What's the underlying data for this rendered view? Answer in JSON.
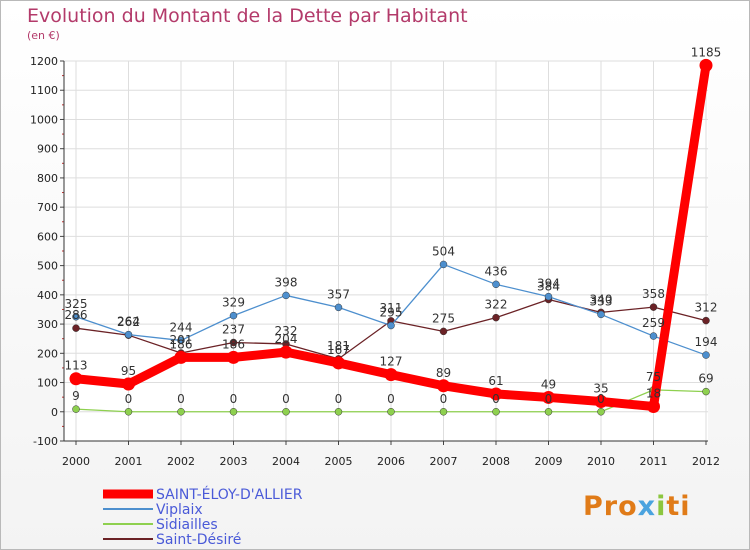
{
  "title": "Evolution du Montant de la Dette par Habitant",
  "subtitle": "(en €)",
  "logo_text": "Proxiti",
  "chart_data": {
    "type": "line",
    "x": [
      "2000",
      "2001",
      "2002",
      "2003",
      "2004",
      "2005",
      "2006",
      "2007",
      "2008",
      "2009",
      "2010",
      "2011",
      "2012"
    ],
    "ylim": [
      -100,
      1200
    ],
    "y_ticks": [
      -100,
      0,
      100,
      200,
      300,
      400,
      500,
      600,
      700,
      800,
      900,
      1000,
      1100,
      1200
    ],
    "grid": true,
    "legend_position": "bottom-left",
    "series": [
      {
        "name": "SAINT-ÉLOY-D'ALLIER",
        "color": "#ff0000",
        "values": [
          113,
          95,
          186,
          186,
          204,
          167,
          127,
          89,
          61,
          49,
          35,
          18,
          1185
        ],
        "labels": [
          "113",
          "95",
          "186",
          "186",
          "204",
          "167",
          "127",
          "89",
          "61",
          "49",
          "35",
          "18",
          "1185"
        ]
      },
      {
        "name": "Viplaix",
        "color": "#4d8fce",
        "values": [
          325,
          264,
          244,
          329,
          398,
          357,
          295,
          504,
          436,
          394,
          333,
          259,
          194
        ],
        "labels": [
          "325",
          "264",
          "244",
          "329",
          "398",
          "357",
          "295",
          "504",
          "436",
          "394",
          "333",
          "259",
          "194"
        ]
      },
      {
        "name": "Sidiailles",
        "color": "#8ed04f",
        "values": [
          9,
          0,
          0,
          0,
          0,
          0,
          0,
          0,
          0,
          0,
          0,
          75,
          69
        ],
        "labels": [
          "9",
          "0",
          "0",
          "0",
          "0",
          "0",
          "0",
          "0",
          "0",
          "0",
          "0",
          "75",
          "69"
        ]
      },
      {
        "name": "Saint-Désiré",
        "color": "#6b2226",
        "values": [
          286,
          262,
          201,
          237,
          232,
          181,
          311,
          275,
          322,
          384,
          340,
          358,
          312
        ],
        "labels": [
          "286",
          "262",
          "201",
          "237",
          "232",
          "181",
          "311",
          "275",
          "322",
          "384",
          "340",
          "358",
          "312"
        ]
      }
    ]
  }
}
